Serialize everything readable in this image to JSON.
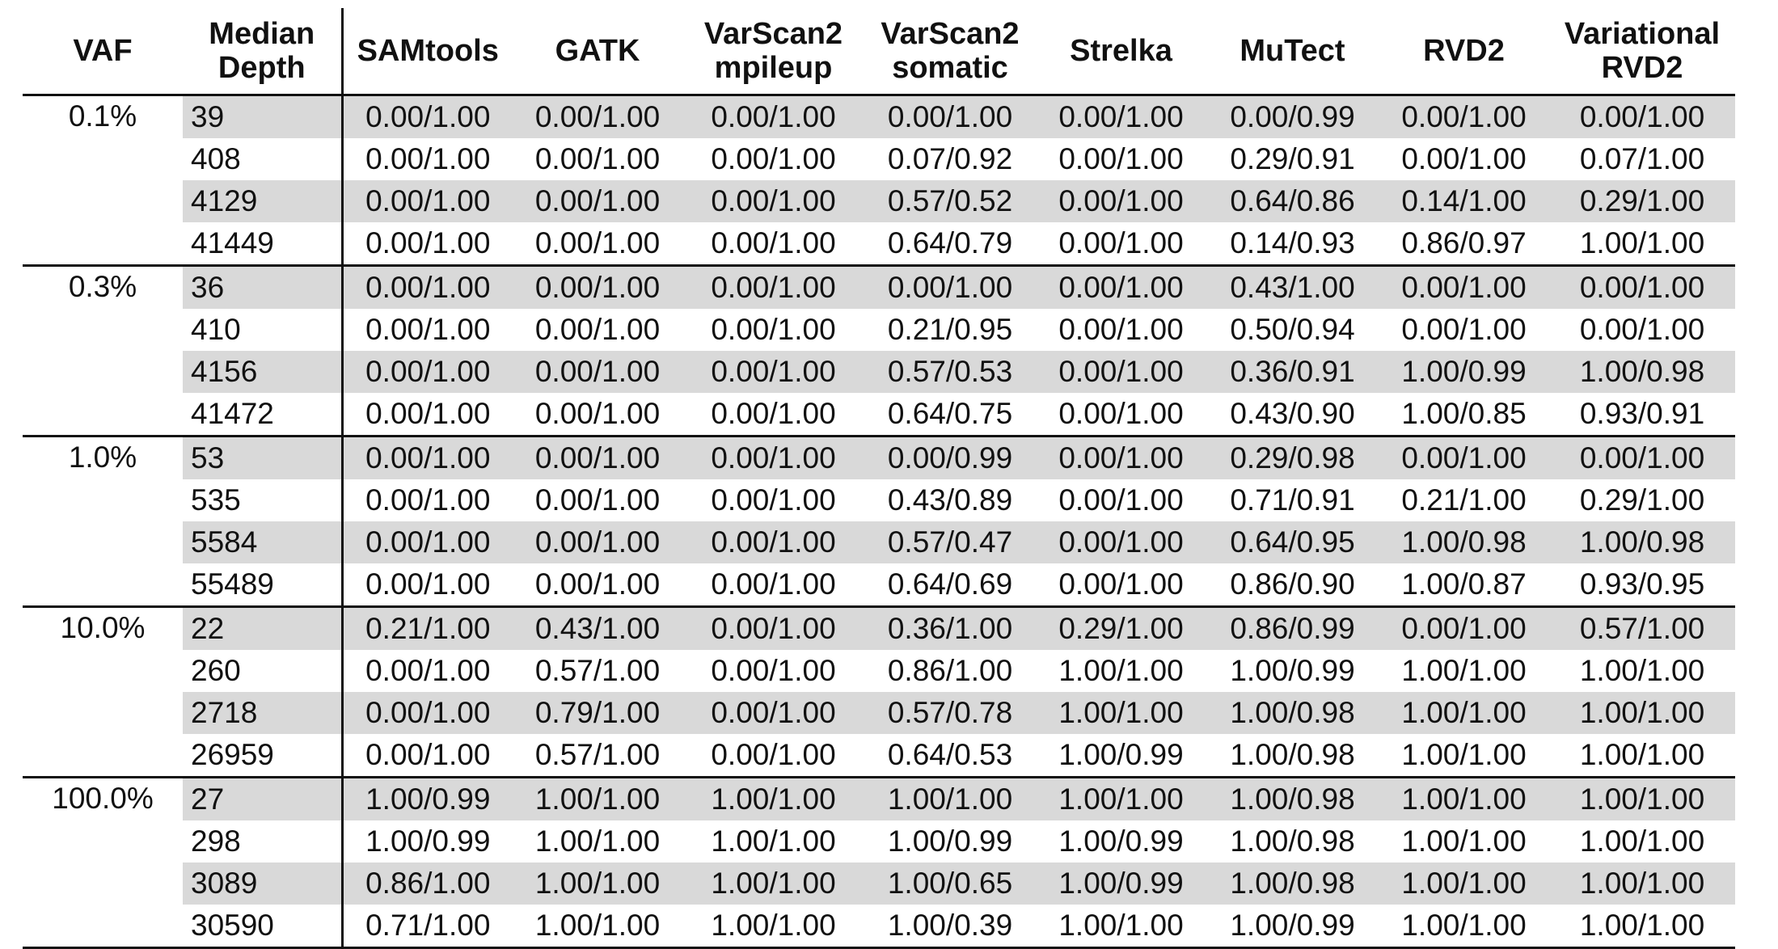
{
  "headers": {
    "vaf": "VAF",
    "depth": [
      "Median",
      "Depth"
    ],
    "callers": [
      [
        "SAMtools"
      ],
      [
        "GATK"
      ],
      [
        "VarScan2",
        "mpileup"
      ],
      [
        "VarScan2",
        "somatic"
      ],
      [
        "Strelka"
      ],
      [
        "MuTect"
      ],
      [
        "RVD2"
      ],
      [
        "Variational",
        "RVD2"
      ]
    ]
  },
  "groups": [
    {
      "vaf": "0.1%",
      "rows": [
        {
          "depth": "39",
          "values": [
            "0.00/1.00",
            "0.00/1.00",
            "0.00/1.00",
            "0.00/1.00",
            "0.00/1.00",
            "0.00/0.99",
            "0.00/1.00",
            "0.00/1.00"
          ]
        },
        {
          "depth": "408",
          "values": [
            "0.00/1.00",
            "0.00/1.00",
            "0.00/1.00",
            "0.07/0.92",
            "0.00/1.00",
            "0.29/0.91",
            "0.00/1.00",
            "0.07/1.00"
          ]
        },
        {
          "depth": "4129",
          "values": [
            "0.00/1.00",
            "0.00/1.00",
            "0.00/1.00",
            "0.57/0.52",
            "0.00/1.00",
            "0.64/0.86",
            "0.14/1.00",
            "0.29/1.00"
          ]
        },
        {
          "depth": "41449",
          "values": [
            "0.00/1.00",
            "0.00/1.00",
            "0.00/1.00",
            "0.64/0.79",
            "0.00/1.00",
            "0.14/0.93",
            "0.86/0.97",
            "1.00/1.00"
          ]
        }
      ]
    },
    {
      "vaf": "0.3%",
      "rows": [
        {
          "depth": "36",
          "values": [
            "0.00/1.00",
            "0.00/1.00",
            "0.00/1.00",
            "0.00/1.00",
            "0.00/1.00",
            "0.43/1.00",
            "0.00/1.00",
            "0.00/1.00"
          ]
        },
        {
          "depth": "410",
          "values": [
            "0.00/1.00",
            "0.00/1.00",
            "0.00/1.00",
            "0.21/0.95",
            "0.00/1.00",
            "0.50/0.94",
            "0.00/1.00",
            "0.00/1.00"
          ]
        },
        {
          "depth": "4156",
          "values": [
            "0.00/1.00",
            "0.00/1.00",
            "0.00/1.00",
            "0.57/0.53",
            "0.00/1.00",
            "0.36/0.91",
            "1.00/0.99",
            "1.00/0.98"
          ]
        },
        {
          "depth": "41472",
          "values": [
            "0.00/1.00",
            "0.00/1.00",
            "0.00/1.00",
            "0.64/0.75",
            "0.00/1.00",
            "0.43/0.90",
            "1.00/0.85",
            "0.93/0.91"
          ]
        }
      ]
    },
    {
      "vaf": "1.0%",
      "rows": [
        {
          "depth": "53",
          "values": [
            "0.00/1.00",
            "0.00/1.00",
            "0.00/1.00",
            "0.00/0.99",
            "0.00/1.00",
            "0.29/0.98",
            "0.00/1.00",
            "0.00/1.00"
          ]
        },
        {
          "depth": "535",
          "values": [
            "0.00/1.00",
            "0.00/1.00",
            "0.00/1.00",
            "0.43/0.89",
            "0.00/1.00",
            "0.71/0.91",
            "0.21/1.00",
            "0.29/1.00"
          ]
        },
        {
          "depth": "5584",
          "values": [
            "0.00/1.00",
            "0.00/1.00",
            "0.00/1.00",
            "0.57/0.47",
            "0.00/1.00",
            "0.64/0.95",
            "1.00/0.98",
            "1.00/0.98"
          ]
        },
        {
          "depth": "55489",
          "values": [
            "0.00/1.00",
            "0.00/1.00",
            "0.00/1.00",
            "0.64/0.69",
            "0.00/1.00",
            "0.86/0.90",
            "1.00/0.87",
            "0.93/0.95"
          ]
        }
      ]
    },
    {
      "vaf": "10.0%",
      "rows": [
        {
          "depth": "22",
          "values": [
            "0.21/1.00",
            "0.43/1.00",
            "0.00/1.00",
            "0.36/1.00",
            "0.29/1.00",
            "0.86/0.99",
            "0.00/1.00",
            "0.57/1.00"
          ]
        },
        {
          "depth": "260",
          "values": [
            "0.00/1.00",
            "0.57/1.00",
            "0.00/1.00",
            "0.86/1.00",
            "1.00/1.00",
            "1.00/0.99",
            "1.00/1.00",
            "1.00/1.00"
          ]
        },
        {
          "depth": "2718",
          "values": [
            "0.00/1.00",
            "0.79/1.00",
            "0.00/1.00",
            "0.57/0.78",
            "1.00/1.00",
            "1.00/0.98",
            "1.00/1.00",
            "1.00/1.00"
          ]
        },
        {
          "depth": "26959",
          "values": [
            "0.00/1.00",
            "0.57/1.00",
            "0.00/1.00",
            "0.64/0.53",
            "1.00/0.99",
            "1.00/0.98",
            "1.00/1.00",
            "1.00/1.00"
          ]
        }
      ]
    },
    {
      "vaf": "100.0%",
      "rows": [
        {
          "depth": "27",
          "values": [
            "1.00/0.99",
            "1.00/1.00",
            "1.00/1.00",
            "1.00/1.00",
            "1.00/1.00",
            "1.00/0.98",
            "1.00/1.00",
            "1.00/1.00"
          ]
        },
        {
          "depth": "298",
          "values": [
            "1.00/0.99",
            "1.00/1.00",
            "1.00/1.00",
            "1.00/0.99",
            "1.00/0.99",
            "1.00/0.98",
            "1.00/1.00",
            "1.00/1.00"
          ]
        },
        {
          "depth": "3089",
          "values": [
            "0.86/1.00",
            "1.00/1.00",
            "1.00/1.00",
            "1.00/0.65",
            "1.00/0.99",
            "1.00/0.98",
            "1.00/1.00",
            "1.00/1.00"
          ]
        },
        {
          "depth": "30590",
          "values": [
            "0.71/1.00",
            "1.00/1.00",
            "1.00/1.00",
            "1.00/0.39",
            "1.00/1.00",
            "1.00/0.99",
            "1.00/1.00",
            "1.00/1.00"
          ]
        }
      ]
    }
  ],
  "colors": {
    "shade": "#d9d9d9",
    "rule": "#111111"
  }
}
